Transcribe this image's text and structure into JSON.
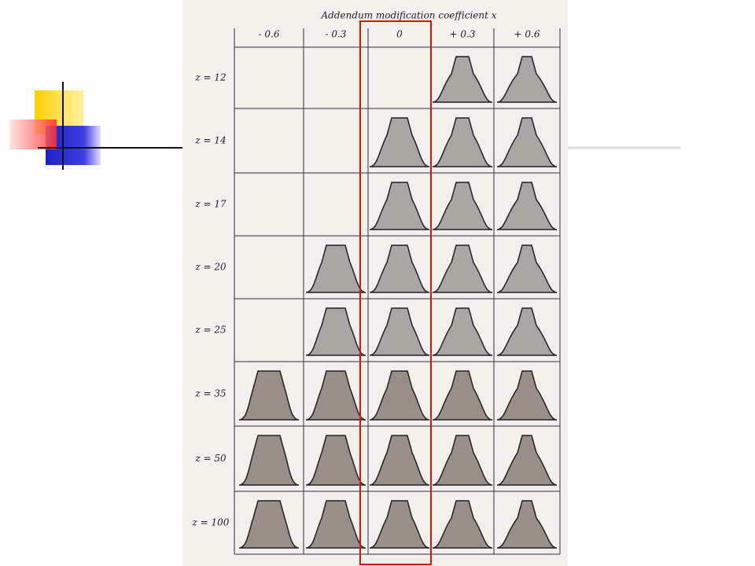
{
  "table": {
    "title": "Addendum modification coefficient x",
    "columns": [
      "- 0.6",
      "- 0.3",
      "0",
      "+ 0.3",
      "+ 0.6"
    ],
    "rows": [
      "z = 12",
      "z = 14",
      "z = 17",
      "z = 20",
      "z = 25",
      "z = 35",
      "z = 50",
      "z = 100"
    ]
  }
}
